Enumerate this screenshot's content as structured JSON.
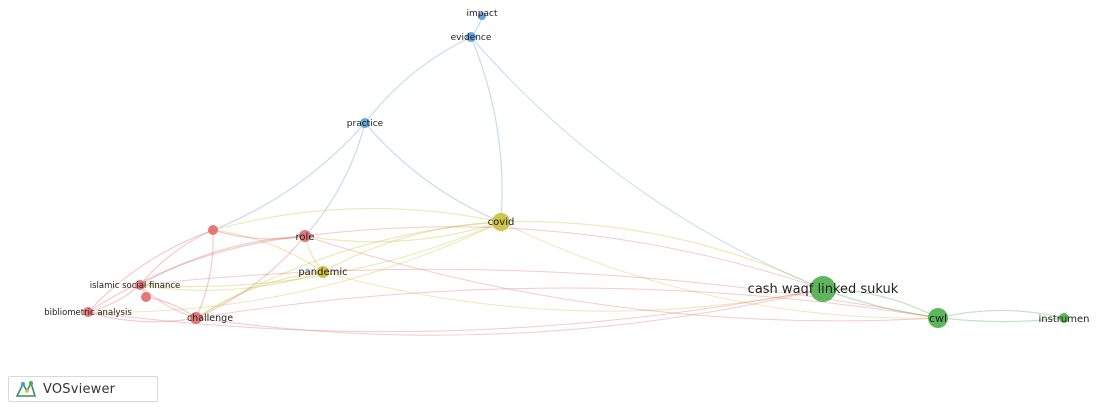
{
  "network": {
    "nodes": [
      {
        "id": "impact",
        "label": "impact",
        "cluster": "blue"
      },
      {
        "id": "evidence",
        "label": "evidence",
        "cluster": "blue"
      },
      {
        "id": "practice",
        "label": "practice",
        "cluster": "blue"
      },
      {
        "id": "covid",
        "label": "covid",
        "cluster": "yellow"
      },
      {
        "id": "pandemic",
        "label": "pandemic",
        "cluster": "yellow"
      },
      {
        "id": "role",
        "label": "role",
        "cluster": "red"
      },
      {
        "id": "red_unlabeled",
        "label": "",
        "cluster": "red"
      },
      {
        "id": "islamic_social_finance",
        "label": "islamic social finance",
        "cluster": "red"
      },
      {
        "id": "bibliometric_analysis",
        "label": "bibliometric analysis",
        "cluster": "red"
      },
      {
        "id": "red_small",
        "label": "",
        "cluster": "red"
      },
      {
        "id": "challenge",
        "label": "challenge",
        "cluster": "red"
      },
      {
        "id": "cwls_main",
        "label": "cash waqf linked sukuk",
        "cluster": "green"
      },
      {
        "id": "cwl",
        "label": "cwl",
        "cluster": "green"
      },
      {
        "id": "instrument",
        "label": "instrumen",
        "cluster": "green"
      }
    ],
    "edges": [
      [
        "impact",
        "evidence"
      ],
      [
        "evidence",
        "practice"
      ],
      [
        "evidence",
        "covid"
      ],
      [
        "evidence",
        "cwls_main"
      ],
      [
        "practice",
        "role"
      ],
      [
        "practice",
        "covid"
      ],
      [
        "practice",
        "red_unlabeled"
      ],
      [
        "covid",
        "pandemic"
      ],
      [
        "covid",
        "cwls_main"
      ],
      [
        "covid",
        "cwl"
      ],
      [
        "covid",
        "role"
      ],
      [
        "covid",
        "challenge"
      ],
      [
        "covid",
        "islamic_social_finance"
      ],
      [
        "covid",
        "red_unlabeled"
      ],
      [
        "covid",
        "bibliometric_analysis"
      ],
      [
        "pandemic",
        "cwls_main"
      ],
      [
        "pandemic",
        "role"
      ],
      [
        "pandemic",
        "challenge"
      ],
      [
        "pandemic",
        "islamic_social_finance"
      ],
      [
        "pandemic",
        "red_unlabeled"
      ],
      [
        "role",
        "red_unlabeled"
      ],
      [
        "role",
        "islamic_social_finance"
      ],
      [
        "role",
        "challenge"
      ],
      [
        "role",
        "bibliometric_analysis"
      ],
      [
        "role",
        "cwls_main"
      ],
      [
        "red_unlabeled",
        "islamic_social_finance"
      ],
      [
        "red_unlabeled",
        "challenge"
      ],
      [
        "red_unlabeled",
        "bibliometric_analysis"
      ],
      [
        "islamic_social_finance",
        "bibliometric_analysis"
      ],
      [
        "islamic_social_finance",
        "challenge"
      ],
      [
        "islamic_social_finance",
        "red_small"
      ],
      [
        "bibliometric_analysis",
        "challenge"
      ],
      [
        "red_small",
        "challenge"
      ],
      [
        "challenge",
        "cwls_main"
      ],
      [
        "challenge",
        "cwl"
      ],
      [
        "bibliometric_analysis",
        "cwls_main"
      ],
      [
        "islamic_social_finance",
        "cwl"
      ],
      [
        "role",
        "cwl"
      ],
      [
        "cwls_main",
        "cwl"
      ],
      [
        "cwls_main",
        "instrument"
      ],
      [
        "cwl",
        "instrument"
      ]
    ]
  },
  "colors": {
    "red": "#e06a6a",
    "blue": "#5b9bd5",
    "yellow": "#c9c03a",
    "green": "#4cae4c"
  },
  "logo": {
    "text": "VOSviewer",
    "icon": "vosviewer-logo-icon"
  }
}
